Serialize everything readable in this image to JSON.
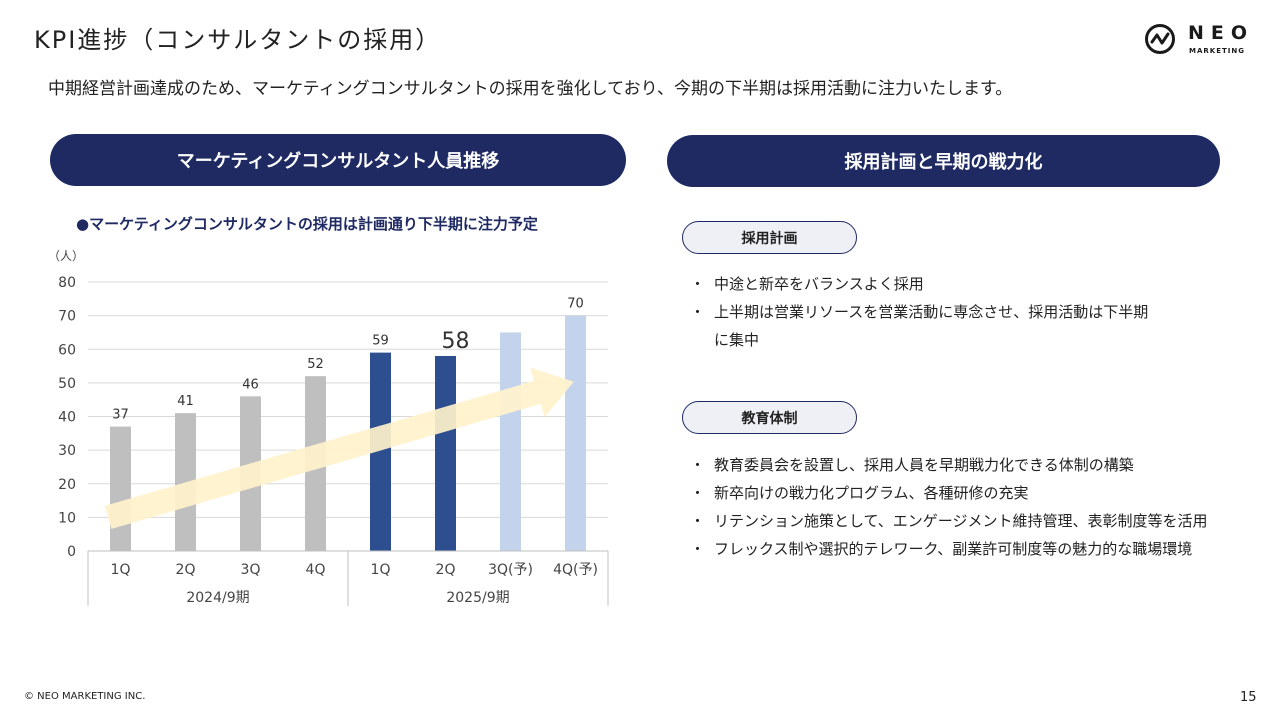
{
  "header": {
    "title": "KPI進捗（コンサルタントの採用）",
    "logo_text": "NEO",
    "logo_sub": "MARKETING"
  },
  "lead": "中期経営計画達成のため、マーケティングコンサルタントの採用を強化しており、今期の下半期は採用活動に注力いたします。",
  "left_panel": {
    "heading": "マーケティングコンサルタント人員推移",
    "subtitle": "●マーケティングコンサルタントの採用は計画通り下半期に注力予定"
  },
  "chart_data": {
    "type": "bar",
    "ylabel": "（人）",
    "ylim": [
      0,
      80
    ],
    "yticks": [
      0,
      10,
      20,
      30,
      40,
      50,
      60,
      70,
      80
    ],
    "categories": [
      "1Q",
      "2Q",
      "3Q",
      "4Q",
      "1Q",
      "2Q",
      "3Q(予)",
      "4Q(予)"
    ],
    "groups": [
      {
        "label": "2024/9期",
        "start": 0,
        "end": 3
      },
      {
        "label": "2025/9期",
        "start": 4,
        "end": 7
      }
    ],
    "values": [
      37,
      41,
      46,
      52,
      59,
      58,
      65,
      70
    ],
    "data_labels": [
      "37",
      "41",
      "46",
      "52",
      "59",
      "58",
      "",
      "70"
    ],
    "highlight_index": 5,
    "bar_colors": [
      "#bfbfbf",
      "#bfbfbf",
      "#bfbfbf",
      "#bfbfbf",
      "#2e4f8f",
      "#2e4f8f",
      "#c4d3ec",
      "#c4d3ec"
    ],
    "arrow_color": "#fff2cc",
    "grid": true
  },
  "right_panel": {
    "heading": "採用計画と早期の戦力化",
    "plan": {
      "tag": "採用計画",
      "items": [
        "中途と新卒をバランスよく採用",
        "上半期は営業リソースを営業活動に専念させ、採用活動は下半期",
        "に集中"
      ]
    },
    "education": {
      "tag": "教育体制",
      "items": [
        "教育委員会を設置し、採用人員を早期戦力化できる体制の構築",
        "新卒向けの戦力化プログラム、各種研修の充実",
        "リテンション施策として、エンゲージメント維持管理、表彰制度等を活用",
        "フレックス制や選択的テレワーク、副業許可制度等の魅力的な職場環境"
      ]
    }
  },
  "footer": {
    "copyright": "© NEO MARKETING INC.",
    "page": "15"
  }
}
